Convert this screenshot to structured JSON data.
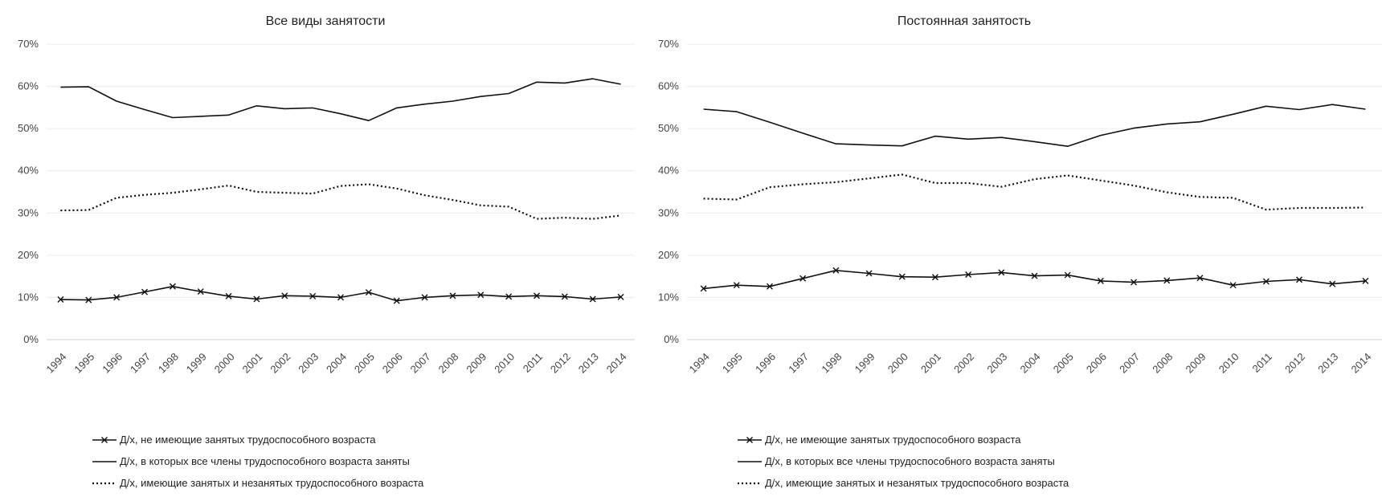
{
  "chart_data": [
    {
      "type": "line",
      "title": "Все виды занятости",
      "categories": [
        "1994",
        "1995",
        "1996",
        "1997",
        "1998",
        "1999",
        "2000",
        "2001",
        "2002",
        "2003",
        "2004",
        "2005",
        "2006",
        "2007",
        "2008",
        "2009",
        "2010",
        "2011",
        "2012",
        "2013",
        "2014"
      ],
      "y_ticks": [
        "0%",
        "10%",
        "20%",
        "30%",
        "40%",
        "50%",
        "60%",
        "70%"
      ],
      "ylim": [
        0,
        70
      ],
      "grid": true,
      "legend_position": "bottom",
      "series": [
        {
          "name": "Д/х, не имеющие занятых трудоспособного возраста",
          "style": "cross",
          "values": [
            9.5,
            9.4,
            10.0,
            11.3,
            12.6,
            11.4,
            10.3,
            9.6,
            10.4,
            10.3,
            10.0,
            11.2,
            9.2,
            10.0,
            10.4,
            10.6,
            10.2,
            10.4,
            10.2,
            9.6,
            10.1
          ]
        },
        {
          "name": "Д/х, в которых все члены трудоспособного возраста заняты",
          "style": "solid",
          "values": [
            59.8,
            59.9,
            56.5,
            54.5,
            52.6,
            52.9,
            53.2,
            55.4,
            54.7,
            54.9,
            53.5,
            51.9,
            54.9,
            55.8,
            56.5,
            57.6,
            58.3,
            61.0,
            60.8,
            61.8,
            60.5
          ]
        },
        {
          "name": "Д/х, имеющие занятых и незанятых трудоспособного возраста",
          "style": "dotted",
          "values": [
            30.6,
            30.7,
            33.6,
            34.3,
            34.8,
            35.6,
            36.5,
            35.0,
            34.8,
            34.6,
            36.4,
            36.8,
            35.8,
            34.2,
            33.1,
            31.8,
            31.5,
            28.6,
            28.9,
            28.6,
            29.4
          ]
        }
      ]
    },
    {
      "type": "line",
      "title": "Постоянная занятость",
      "categories": [
        "1994",
        "1995",
        "1996",
        "1997",
        "1998",
        "1999",
        "2000",
        "2001",
        "2002",
        "2003",
        "2004",
        "2005",
        "2006",
        "2007",
        "2008",
        "2009",
        "2010",
        "2011",
        "2012",
        "2013",
        "2014"
      ],
      "y_ticks": [
        "0%",
        "10%",
        "20%",
        "30%",
        "40%",
        "50%",
        "60%",
        "70%"
      ],
      "ylim": [
        0,
        70
      ],
      "grid": true,
      "legend_position": "bottom",
      "series": [
        {
          "name": "Д/х, не имеющие занятых трудоспособного возраста",
          "style": "cross",
          "values": [
            12.1,
            12.9,
            12.6,
            14.5,
            16.4,
            15.7,
            14.9,
            14.8,
            15.4,
            15.9,
            15.1,
            15.3,
            13.9,
            13.6,
            14.0,
            14.6,
            12.9,
            13.8,
            14.2,
            13.2,
            13.9
          ]
        },
        {
          "name": "Д/х, в которых все члены трудоспособного возраста заняты",
          "style": "solid",
          "values": [
            54.6,
            54.0,
            51.5,
            48.9,
            46.4,
            46.1,
            45.9,
            48.2,
            47.5,
            47.9,
            46.9,
            45.8,
            48.4,
            50.1,
            51.1,
            51.6,
            53.4,
            55.3,
            54.5,
            55.7,
            54.6
          ]
        },
        {
          "name": "Д/х, имеющие занятых и незанятых трудоспособного возраста",
          "style": "dotted",
          "values": [
            33.4,
            33.2,
            36.1,
            36.8,
            37.3,
            38.2,
            39.1,
            37.1,
            37.1,
            36.2,
            38.0,
            38.9,
            37.7,
            36.5,
            34.9,
            33.8,
            33.6,
            30.8,
            31.2,
            31.2,
            31.3
          ]
        }
      ]
    }
  ]
}
